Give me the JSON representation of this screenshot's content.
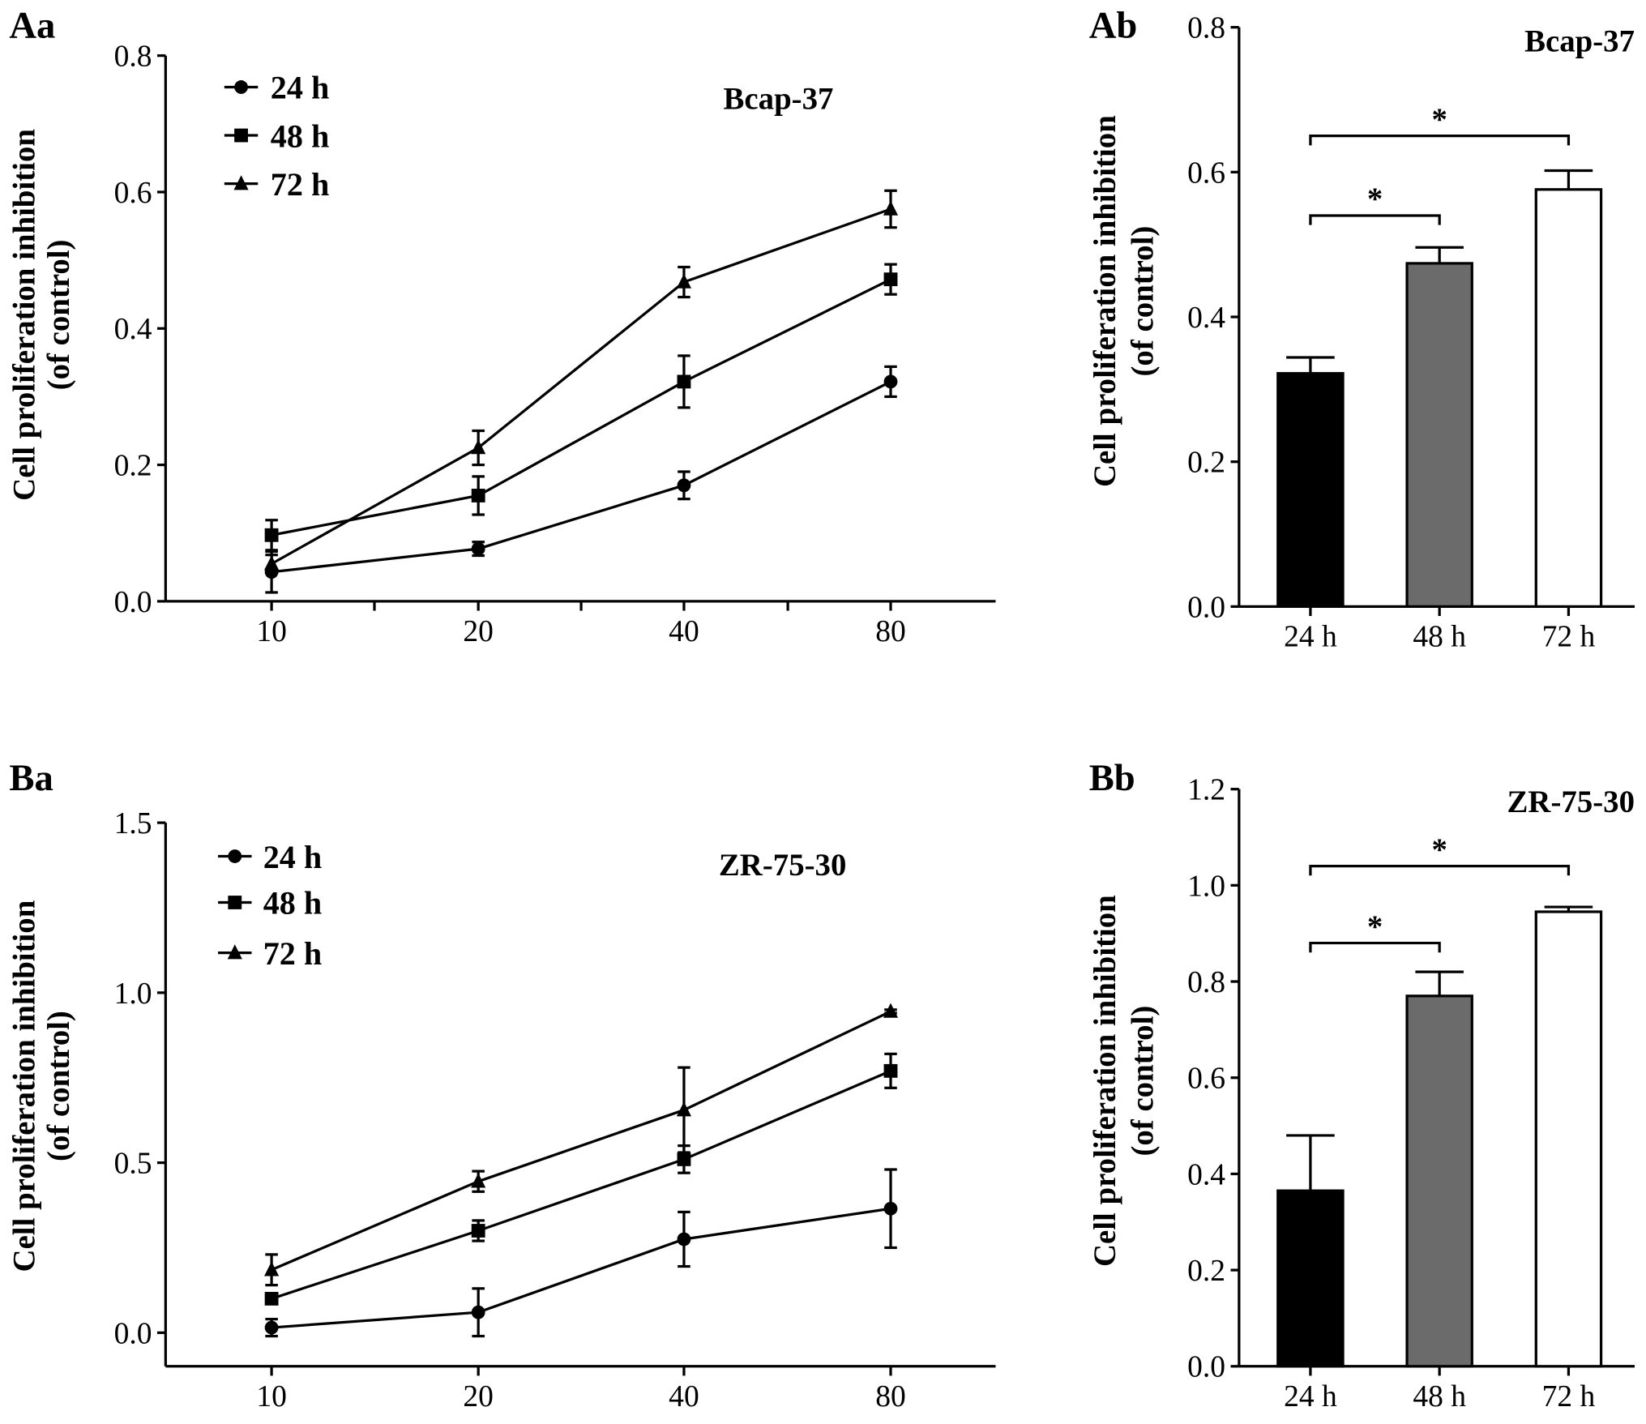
{
  "ylabel_line1": "Cell proliferation inhibition",
  "ylabel_line2": "(of control)",
  "chart_data": [
    {
      "panel": "Aa",
      "type": "line",
      "title": "Bcap-37",
      "ylabel": "Cell proliferation inhibition (of control)",
      "x": [
        "10",
        "20",
        "40",
        "80"
      ],
      "ylim": [
        0,
        0.8
      ],
      "yticks": [
        "0.0",
        "0.2",
        "0.4",
        "0.6",
        "0.8"
      ],
      "ytick_values": [
        0,
        0.2,
        0.4,
        0.6,
        0.8
      ],
      "legend_position": "top-left",
      "grid": false,
      "series": [
        {
          "name": "24 h",
          "marker": "circle",
          "values": [
            0.043,
            0.077,
            0.17,
            0.322
          ],
          "errors": [
            0.03,
            0.01,
            0.02,
            0.022
          ]
        },
        {
          "name": "48 h",
          "marker": "square",
          "values": [
            0.097,
            0.155,
            0.322,
            0.472
          ],
          "errors": [
            0.022,
            0.028,
            0.038,
            0.022
          ]
        },
        {
          "name": "72 h",
          "marker": "triangle",
          "values": [
            0.055,
            0.225,
            0.468,
            0.575
          ],
          "errors": [
            0.013,
            0.025,
            0.022,
            0.027
          ]
        }
      ]
    },
    {
      "panel": "Ab",
      "type": "bar",
      "title": "Bcap-37",
      "ylabel": "Cell proliferation inhibition (of control)",
      "categories": [
        "24 h",
        "48 h",
        "72 h"
      ],
      "values": [
        0.322,
        0.474,
        0.576
      ],
      "errors": [
        0.022,
        0.022,
        0.026
      ],
      "colors": [
        "#000000",
        "#6b6b6b",
        "#ffffff"
      ],
      "ylim": [
        0,
        0.8
      ],
      "yticks": [
        "0.0",
        "0.2",
        "0.4",
        "0.6",
        "0.8"
      ],
      "ytick_values": [
        0,
        0.2,
        0.4,
        0.6,
        0.8
      ],
      "significance": [
        {
          "from": 0,
          "to": 1,
          "level": 0.54,
          "label": "*"
        },
        {
          "from": 0,
          "to": 2,
          "level": 0.65,
          "label": "*"
        }
      ]
    },
    {
      "panel": "Ba",
      "type": "line",
      "title": "ZR-75-30",
      "ylabel": "Cell proliferation inhibition (of control)",
      "x": [
        "10",
        "20",
        "40",
        "80"
      ],
      "ylim": [
        0,
        1.5
      ],
      "yticks": [
        "0.0",
        "0.5",
        "1.0",
        "1.5"
      ],
      "ytick_values": [
        0,
        0.5,
        1.0,
        1.5
      ],
      "legend_position": "top-left",
      "grid": false,
      "series": [
        {
          "name": "24 h",
          "marker": "circle",
          "values": [
            0.015,
            0.06,
            0.275,
            0.365
          ],
          "errors": [
            0.025,
            0.07,
            0.08,
            0.115
          ]
        },
        {
          "name": "48 h",
          "marker": "square",
          "values": [
            0.1,
            0.3,
            0.51,
            0.77
          ],
          "errors": [
            0.01,
            0.03,
            0.04,
            0.05
          ]
        },
        {
          "name": "72 h",
          "marker": "triangle",
          "values": [
            0.185,
            0.445,
            0.655,
            0.945
          ],
          "errors": [
            0.045,
            0.03,
            0.125,
            0.005
          ]
        }
      ]
    },
    {
      "panel": "Bb",
      "type": "bar",
      "title": "ZR-75-30",
      "ylabel": "Cell proliferation inhibition (of control)",
      "categories": [
        "24 h",
        "48 h",
        "72 h"
      ],
      "values": [
        0.365,
        0.77,
        0.945
      ],
      "errors": [
        0.115,
        0.05,
        0.01
      ],
      "colors": [
        "#000000",
        "#6b6b6b",
        "#ffffff"
      ],
      "ylim": [
        0,
        1.2
      ],
      "yticks": [
        "0.0",
        "0.2",
        "0.4",
        "0.6",
        "0.8",
        "1.0",
        "1.2"
      ],
      "ytick_values": [
        0,
        0.2,
        0.4,
        0.6,
        0.8,
        1.0,
        1.2
      ],
      "significance": [
        {
          "from": 0,
          "to": 1,
          "level": 0.88,
          "label": "*"
        },
        {
          "from": 0,
          "to": 2,
          "level": 1.04,
          "label": "*"
        }
      ]
    }
  ]
}
